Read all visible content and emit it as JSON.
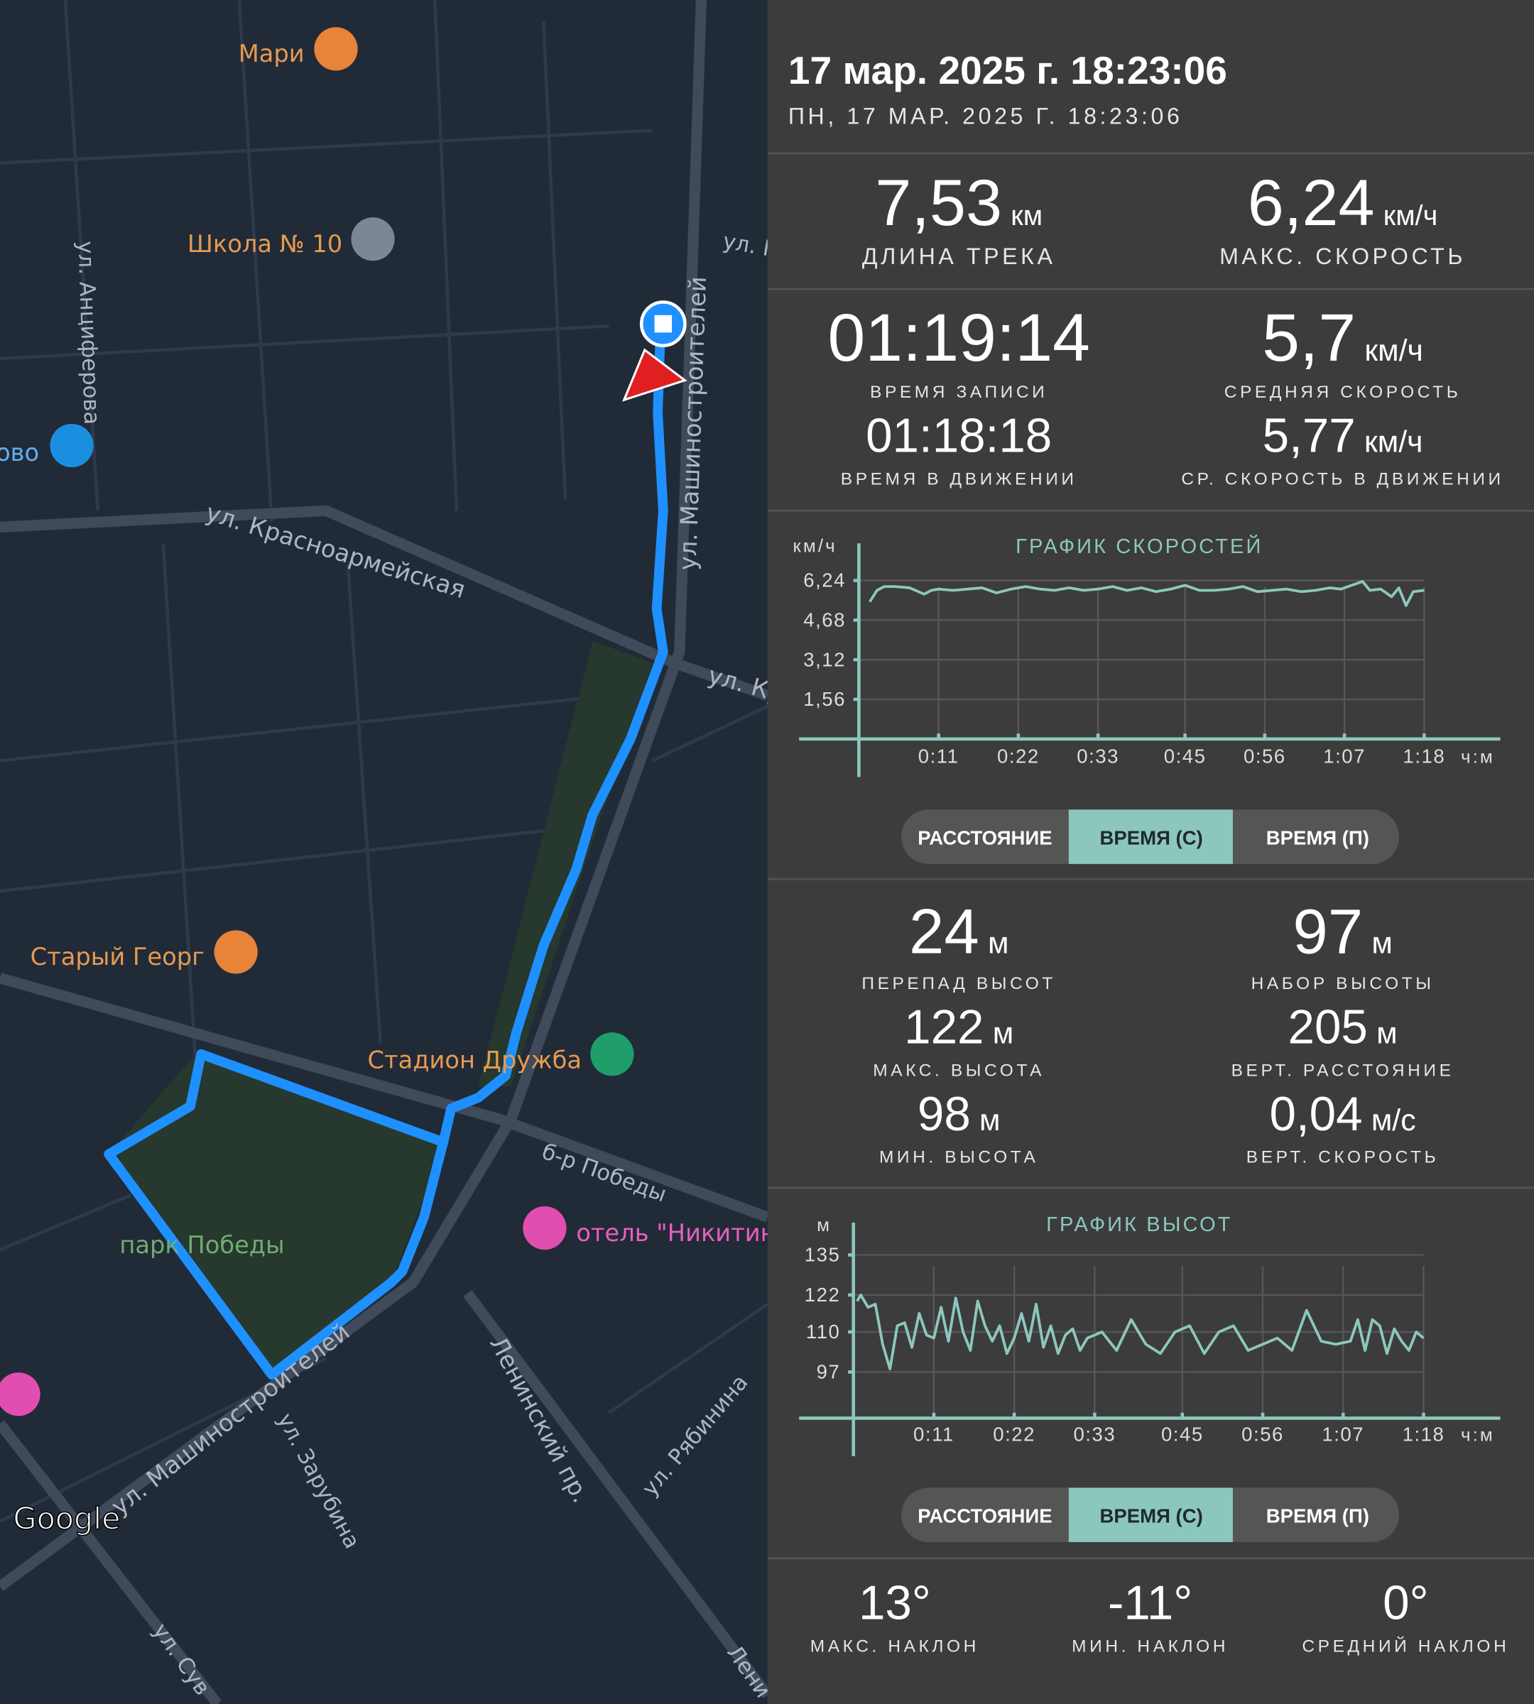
{
  "map": {
    "labels": [
      "Мари",
      "Школа № 10",
      "ул. Анциферова",
      "ово",
      "ул. Красноармейская",
      "ул. Машиностроителей",
      "ул. Кр",
      "ул. П",
      "Старый Георг",
      "Стадион Дружба",
      "б-р Победы",
      "отель \"Никитин",
      "парк Победы",
      "ул. Машиностроителей",
      "ул. Зарубина",
      "Ленинский пр.",
      "ул. Рябинина",
      "ул. Сув",
      "Лени",
      "Google"
    ]
  },
  "header": {
    "title": "17 мар. 2025 г. 18:23:06",
    "subtitle": "ПН, 17 МАР. 2025 Г. 18:23:06"
  },
  "track_stats": [
    {
      "value": "7,53",
      "unit": "км",
      "label": "ДЛИНА ТРЕКА"
    },
    {
      "value": "6,24",
      "unit": "км/ч",
      "label": "МАКС. СКОРОСТЬ"
    },
    {
      "value": "01:19:14",
      "label": "ВРЕМЯ ЗАПИСИ"
    },
    {
      "value": "5,7",
      "unit": "км/ч",
      "label": "СРЕДНЯЯ СКОРОСТЬ"
    },
    {
      "value": "01:18:18",
      "label": "ВРЕМЯ В ДВИЖЕНИИ"
    },
    {
      "value": "5,77",
      "unit": "км/ч",
      "label": "СР. СКОРОСТЬ В ДВИЖЕНИИ"
    }
  ],
  "elevation_stats": [
    {
      "value": "24",
      "unit": "м",
      "label": "ПЕРЕПАД ВЫСОТ"
    },
    {
      "value": "97",
      "unit": "м",
      "label": "НАБОР ВЫСОТЫ"
    },
    {
      "value": "122",
      "unit": "м",
      "label": "МАКС. ВЫСОТА"
    },
    {
      "value": "205",
      "unit": "м",
      "label": "ВЕРТ. РАССТОЯНИЕ"
    },
    {
      "value": "98",
      "unit": "м",
      "label": "МИН. ВЫСОТА"
    },
    {
      "value": "0,04",
      "unit": "м/с",
      "label": "ВЕРТ. СКОРОСТЬ"
    }
  ],
  "slope_stats": [
    {
      "value": "13°",
      "label": "МАКС. НАКЛОН"
    },
    {
      "value": "-11°",
      "label": "МИН. НАКЛОН"
    },
    {
      "value": "0°",
      "label": "СРЕДНИЙ НАКЛОН"
    }
  ],
  "speed_buttons": [
    "РАССТОЯНИЕ",
    "ВРЕМЯ (С)",
    "ВРЕМЯ (П)"
  ],
  "elevation_buttons": [
    "РАССТОЯНИЕ",
    "ВРЕМЯ (С)",
    "ВРЕМЯ (П)"
  ],
  "chart_data": [
    {
      "type": "line",
      "title": "ГРАФИК СКОРОСТЕЙ",
      "y_label": "км/ч",
      "x_label": "ч:м",
      "color": "#8cc7bd",
      "grid": true,
      "xlim": [
        0,
        88.5
      ],
      "ylim": [
        0,
        7.7
      ],
      "xticks": [
        {
          "value": 11,
          "label": "0:11"
        },
        {
          "value": 22,
          "label": "0:22"
        },
        {
          "value": 33,
          "label": "0:33"
        },
        {
          "value": 45,
          "label": "0:45"
        },
        {
          "value": 56,
          "label": "0:56"
        },
        {
          "value": 67,
          "label": "1:07"
        },
        {
          "value": 78,
          "label": "1:18"
        }
      ],
      "yticks": [
        {
          "value": 1.56,
          "label": "1,56"
        },
        {
          "value": 3.12,
          "label": "3,12"
        },
        {
          "value": 4.68,
          "label": "4,68"
        },
        {
          "value": 6.24,
          "label": "6,24"
        }
      ],
      "x": [
        1.5,
        2.5,
        3.5,
        5,
        7,
        9,
        10,
        11,
        13,
        15,
        17,
        19,
        21,
        23,
        25,
        27,
        29,
        31,
        33,
        35,
        37,
        39,
        41,
        43,
        45,
        47,
        49,
        51,
        53,
        55,
        57,
        59,
        61,
        63,
        65,
        66.5,
        69.5,
        70.5,
        72,
        73.5,
        74.5,
        75.5,
        76.5,
        78
      ],
      "values": [
        5.4,
        5.85,
        6.0,
        6.0,
        5.95,
        5.7,
        5.85,
        5.9,
        5.85,
        5.9,
        5.95,
        5.75,
        5.9,
        6.0,
        5.9,
        5.85,
        5.95,
        5.85,
        5.9,
        6.0,
        5.85,
        5.95,
        5.8,
        5.9,
        6.05,
        5.85,
        5.85,
        5.9,
        6.0,
        5.8,
        5.85,
        5.9,
        5.8,
        5.85,
        5.95,
        5.9,
        6.2,
        5.85,
        5.9,
        5.6,
        5.95,
        5.25,
        5.8,
        5.85
      ]
    },
    {
      "type": "line",
      "title": "ГРАФИК ВЫСОТ",
      "y_label": "м",
      "x_label": "ч:м",
      "color": "#8cc7bd",
      "grid": true,
      "xlim": [
        0,
        88.5
      ],
      "ylim": [
        82,
        145.5
      ],
      "xticks": [
        {
          "value": 11,
          "label": "0:11"
        },
        {
          "value": 22,
          "label": "0:22"
        },
        {
          "value": 33,
          "label": "0:33"
        },
        {
          "value": 45,
          "label": "0:45"
        },
        {
          "value": 56,
          "label": "0:56"
        },
        {
          "value": 67,
          "label": "1:07"
        },
        {
          "value": 78,
          "label": "1:18"
        }
      ],
      "yticks": [
        97,
        110,
        122,
        135
      ],
      "x": [
        0.5,
        1,
        2,
        3,
        4,
        5,
        6,
        7,
        8,
        9,
        10,
        11,
        12,
        13,
        14,
        15,
        16,
        17,
        18,
        19,
        20,
        21,
        22,
        23,
        24,
        25,
        26,
        27,
        28,
        29,
        30,
        31,
        32,
        34,
        36,
        38,
        40,
        42,
        44,
        46,
        48,
        50,
        52,
        54,
        56,
        58,
        60,
        62,
        64,
        66,
        68,
        69,
        70,
        71,
        72,
        73,
        74,
        75,
        76,
        77,
        78
      ],
      "values": [
        120,
        122,
        118,
        119,
        106,
        98,
        112,
        113,
        105,
        116,
        109,
        108,
        118,
        107,
        121,
        110,
        104,
        120,
        112,
        107,
        112,
        103,
        108,
        116,
        107,
        119,
        105,
        112,
        103,
        109,
        111,
        104,
        108,
        110,
        104,
        114,
        106,
        103,
        110,
        112,
        103,
        110,
        112,
        104,
        106,
        108,
        104,
        117,
        107,
        106,
        107,
        114,
        104,
        114,
        112,
        103,
        111,
        107,
        104,
        110,
        108
      ]
    }
  ]
}
